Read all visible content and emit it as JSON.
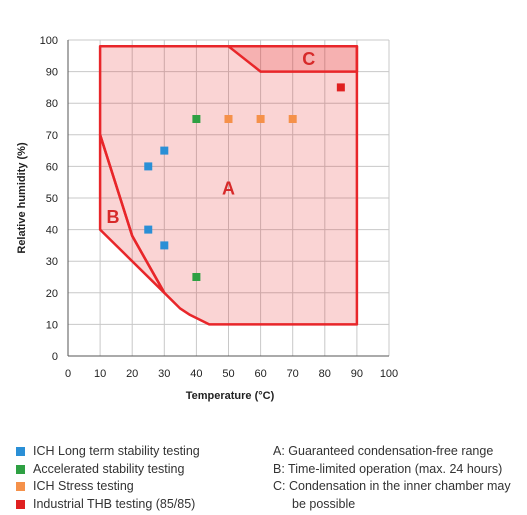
{
  "chart_data": {
    "type": "scatter",
    "title": "",
    "xlabel": "Temperature (°C)",
    "ylabel": "Relative humidity (%)",
    "xlim": [
      0,
      100
    ],
    "ylim": [
      0,
      100
    ],
    "xticks": [
      "0",
      "10",
      "20",
      "30",
      "40",
      "50",
      "60",
      "70",
      "80",
      "90",
      "100"
    ],
    "yticks": [
      "0",
      "10",
      "20",
      "30",
      "40",
      "50",
      "60",
      "70",
      "80",
      "90",
      "100"
    ],
    "grid": true,
    "regions": [
      {
        "label": "A",
        "color": "#e8262a",
        "polygon": [
          [
            10,
            98
          ],
          [
            90,
            98
          ],
          [
            90,
            10
          ],
          [
            44,
            10
          ],
          [
            38,
            13
          ],
          [
            35,
            15
          ],
          [
            30,
            20
          ],
          [
            20,
            38
          ],
          [
            10,
            70
          ]
        ],
        "label_at": [
          50,
          53
        ]
      },
      {
        "label": "B",
        "color": "#e8262a",
        "polygon": [
          [
            10,
            70
          ],
          [
            10,
            40
          ],
          [
            30,
            20
          ],
          [
            20,
            38
          ]
        ],
        "label_at": [
          14,
          44
        ]
      },
      {
        "label": "C",
        "color": "#e8262a",
        "polygon": [
          [
            50,
            98
          ],
          [
            90,
            98
          ],
          [
            90,
            90
          ],
          [
            60,
            90
          ]
        ],
        "label_at": [
          75,
          94
        ]
      }
    ],
    "series": [
      {
        "name": "ICH Long term stability testing",
        "color": "#2a8fd6",
        "points": [
          [
            25,
            60
          ],
          [
            30,
            65
          ],
          [
            25,
            40
          ],
          [
            30,
            35
          ]
        ]
      },
      {
        "name": "Accelerated stability testing",
        "color": "#2ea043",
        "points": [
          [
            40,
            75
          ],
          [
            40,
            25
          ]
        ]
      },
      {
        "name": "ICH Stress testing",
        "color": "#f5914a",
        "points": [
          [
            50,
            75
          ],
          [
            60,
            75
          ],
          [
            70,
            75
          ]
        ]
      },
      {
        "name": "Industrial THB testing (85/85)",
        "color": "#e02020",
        "points": [
          [
            85,
            85
          ]
        ]
      }
    ]
  },
  "legend": {
    "items": [
      {
        "label": "ICH Long term stability testing",
        "color": "#2a8fd6"
      },
      {
        "label": "Accelerated stability testing",
        "color": "#2ea043"
      },
      {
        "label": "ICH Stress testing",
        "color": "#f5914a"
      },
      {
        "label": "Industrial THB testing (85/85)",
        "color": "#e02020"
      }
    ],
    "notes": [
      "A: Guaranteed condensation-free range",
      "B: Time-limited operation (max. 24 hours)",
      "C: Condensation in the inner chamber may",
      "be possible"
    ]
  }
}
